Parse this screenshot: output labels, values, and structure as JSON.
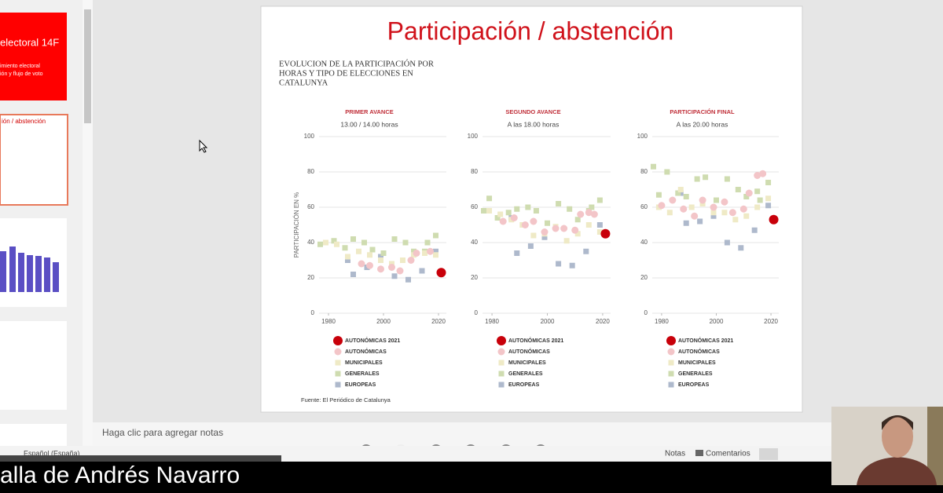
{
  "thumbnails": {
    "slide1_title": "electoral 14F",
    "slide1_line1": "imiento electoral",
    "slide1_line2": "ión y flujo de voto",
    "slide2_title": "ión / abstención"
  },
  "slide": {
    "title": "Participación / abstención",
    "heading": [
      "EVOLUCION DE LA PARTICIPACIÓN POR",
      "HORAS Y TIPO DE ELECCIONES EN",
      "CATALUNYA"
    ],
    "source": "Fuente: El Periódico de Catalunya"
  },
  "notes_placeholder": "Haga clic para agregar notas",
  "status": {
    "language": "Español (España)",
    "notes": "Notas",
    "comments": "Comentarios"
  },
  "caption": "alla de Andrés Navarro",
  "chart_data": [
    {
      "type": "scatter",
      "title": "PRIMER AVANCE",
      "subtitle": "13.00 / 14.00 horas",
      "y_label": "PARTICIPACIÓN EN %",
      "xlim": [
        1976,
        2024
      ],
      "xticks": [
        1980,
        2000,
        2020
      ],
      "ylim": [
        0,
        100
      ],
      "yticks": [
        0,
        20,
        40,
        60,
        80,
        100
      ],
      "grid": true,
      "series": [
        {
          "name": "AUTONÓMICAS 2021",
          "color": "#c8000a",
          "marker": "dot",
          "x": [
            2021
          ],
          "values": [
            23
          ]
        },
        {
          "name": "AUTONÓMICAS",
          "color": "#f3c5c8",
          "marker": "circle",
          "x": [
            1992,
            1995,
            1999,
            2003,
            2006,
            2010,
            2012,
            2017
          ],
          "values": [
            28,
            27,
            25,
            26,
            24,
            30,
            34,
            35
          ]
        },
        {
          "name": "MUNICIPALES",
          "color": "#efeac6",
          "marker": "square",
          "x": [
            1979,
            1983,
            1987,
            1991,
            1995,
            1999,
            2003,
            2007,
            2011,
            2015,
            2019
          ],
          "values": [
            40,
            39,
            32,
            35,
            33,
            30,
            28,
            30,
            33,
            34,
            33
          ]
        },
        {
          "name": "GENERALES",
          "color": "#cfdcb0",
          "marker": "square",
          "x": [
            1977,
            1979,
            1982,
            1986,
            1989,
            1993,
            1996,
            2000,
            2004,
            2008,
            2011,
            2015,
            2016,
            2019
          ],
          "values": [
            39,
            40,
            41,
            37,
            42,
            40,
            36,
            34,
            42,
            40,
            35,
            35,
            40,
            44
          ]
        },
        {
          "name": "EUROPEAS",
          "color": "#aeb9cc",
          "marker": "square",
          "x": [
            1987,
            1989,
            1994,
            1999,
            2004,
            2009,
            2014,
            2019
          ],
          "values": [
            30,
            22,
            26,
            32,
            21,
            19,
            24,
            35
          ]
        }
      ]
    },
    {
      "type": "scatter",
      "title": "SEGUNDO AVANCE",
      "subtitle": "A las 18.00 horas",
      "xlim": [
        1976,
        2024
      ],
      "xticks": [
        1980,
        2000,
        2020
      ],
      "ylim": [
        0,
        100
      ],
      "yticks": [
        0,
        20,
        40,
        60,
        80,
        100
      ],
      "grid": true,
      "series": [
        {
          "name": "AUTONÓMICAS 2021",
          "color": "#c8000a",
          "marker": "dot",
          "x": [
            2021
          ],
          "values": [
            45
          ]
        },
        {
          "name": "AUTONÓMICAS",
          "color": "#f3c5c8",
          "marker": "circle",
          "x": [
            1984,
            1988,
            1992,
            1995,
            1999,
            2003,
            2006,
            2010,
            2012,
            2015,
            2017
          ],
          "values": [
            52,
            54,
            50,
            52,
            46,
            48,
            48,
            47,
            56,
            57,
            56
          ]
        },
        {
          "name": "MUNICIPALES",
          "color": "#efeac6",
          "marker": "square",
          "x": [
            1979,
            1983,
            1987,
            1991,
            1995,
            1999,
            2003,
            2007,
            2011,
            2015,
            2019
          ],
          "values": [
            58,
            56,
            53,
            50,
            44,
            45,
            49,
            41,
            45,
            50,
            46
          ]
        },
        {
          "name": "GENERALES",
          "color": "#cfdcb0",
          "marker": "square",
          "x": [
            1977,
            1979,
            1982,
            1986,
            1989,
            1993,
            1996,
            2000,
            2004,
            2008,
            2011,
            2015,
            2016,
            2019
          ],
          "values": [
            58,
            65,
            54,
            57,
            59,
            60,
            58,
            51,
            62,
            59,
            53,
            58,
            60,
            64
          ]
        },
        {
          "name": "EUROPEAS",
          "color": "#aeb9cc",
          "marker": "square",
          "x": [
            1987,
            1989,
            1994,
            1999,
            2004,
            2009,
            2014,
            2019
          ],
          "values": [
            54,
            34,
            38,
            43,
            28,
            27,
            35,
            50
          ]
        }
      ]
    },
    {
      "type": "scatter",
      "title": "PARTICIPACIÓN FINAL",
      "subtitle": "A las 20.00 horas",
      "xlim": [
        1976,
        2024
      ],
      "xticks": [
        1980,
        2000,
        2020
      ],
      "ylim": [
        0,
        100
      ],
      "yticks": [
        0,
        20,
        40,
        60,
        80,
        100
      ],
      "grid": true,
      "series": [
        {
          "name": "AUTONÓMICAS 2021",
          "color": "#c8000a",
          "marker": "dot",
          "x": [
            2021
          ],
          "values": [
            53
          ]
        },
        {
          "name": "AUTONÓMICAS",
          "color": "#f3c5c8",
          "marker": "circle",
          "x": [
            1980,
            1984,
            1988,
            1992,
            1995,
            1999,
            2003,
            2006,
            2010,
            2012,
            2015,
            2017
          ],
          "values": [
            61,
            64,
            59,
            55,
            64,
            60,
            63,
            57,
            59,
            68,
            78,
            79
          ]
        },
        {
          "name": "MUNICIPALES",
          "color": "#efeac6",
          "marker": "square",
          "x": [
            1979,
            1983,
            1987,
            1991,
            1995,
            1999,
            2003,
            2007,
            2011,
            2015,
            2019
          ],
          "values": [
            60,
            57,
            70,
            60,
            62,
            57,
            57,
            53,
            55,
            60,
            65
          ]
        },
        {
          "name": "GENERALES",
          "color": "#cfdcb0",
          "marker": "square",
          "x": [
            1977,
            1979,
            1982,
            1986,
            1989,
            1993,
            1996,
            2000,
            2004,
            2008,
            2011,
            2015,
            2016,
            2019
          ],
          "values": [
            83,
            67,
            80,
            68,
            66,
            76,
            77,
            64,
            76,
            70,
            66,
            69,
            64,
            74
          ]
        },
        {
          "name": "EUROPEAS",
          "color": "#aeb9cc",
          "marker": "square",
          "x": [
            1987,
            1989,
            1994,
            1999,
            2004,
            2009,
            2014,
            2019
          ],
          "values": [
            68,
            51,
            52,
            55,
            40,
            37,
            47,
            61
          ]
        }
      ]
    }
  ]
}
